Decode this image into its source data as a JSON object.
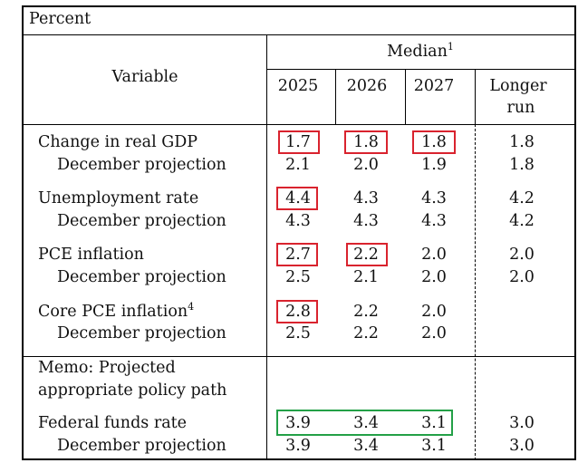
{
  "header": {
    "unit": "Percent",
    "variable": "Variable",
    "median": "Median",
    "median_note": "1",
    "years": [
      "2025",
      "2026",
      "2027"
    ],
    "longer_run_line1": "Longer",
    "longer_run_line2": "run"
  },
  "rows": [
    {
      "label": "Change in real GDP",
      "values": [
        "1.7",
        "1.8",
        "1.8",
        "1.8"
      ],
      "dec_label": "December projection",
      "dec_values": [
        "2.1",
        "2.0",
        "1.9",
        "1.8"
      ]
    },
    {
      "label": "Unemployment rate",
      "values": [
        "4.4",
        "4.3",
        "4.3",
        "4.2"
      ],
      "dec_label": "December projection",
      "dec_values": [
        "4.3",
        "4.3",
        "4.3",
        "4.2"
      ]
    },
    {
      "label": "PCE inflation",
      "values": [
        "2.7",
        "2.2",
        "2.0",
        "2.0"
      ],
      "dec_label": "December projection",
      "dec_values": [
        "2.5",
        "2.1",
        "2.0",
        "2.0"
      ]
    },
    {
      "label": "Core PCE inflation",
      "note": "4",
      "values": [
        "2.8",
        "2.2",
        "2.0"
      ],
      "dec_label": "December projection",
      "dec_values": [
        "2.5",
        "2.2",
        "2.0"
      ]
    }
  ],
  "memo": {
    "line1": "Memo: Projected",
    "line2": "appropriate policy path"
  },
  "ffr": {
    "label": "Federal funds rate",
    "values": [
      "3.9",
      "3.4",
      "3.1",
      "3.0"
    ],
    "dec_label": "December projection",
    "dec_values": [
      "3.9",
      "3.4",
      "3.1",
      "3.0"
    ]
  },
  "highlight_colors": {
    "red": "#d9232e",
    "green": "#23a047"
  }
}
